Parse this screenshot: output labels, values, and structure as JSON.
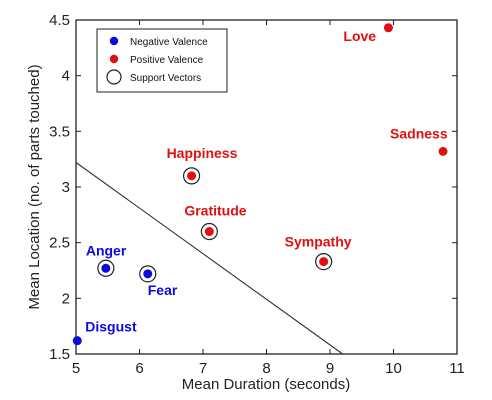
{
  "chart_data": {
    "type": "scatter",
    "xlabel": "Mean Duration (seconds)",
    "ylabel": "Mean Location (no. of parts touched)",
    "xlim": [
      5,
      11
    ],
    "ylim": [
      1.5,
      4.5
    ],
    "x_ticks": [
      "5",
      "6",
      "7",
      "8",
      "9",
      "10",
      "11"
    ],
    "y_ticks": [
      "1.5",
      "2",
      "2.5",
      "3",
      "3.5",
      "4",
      "4.5"
    ],
    "legend": {
      "placement": "top-left",
      "entries": [
        {
          "label": "Negative Valence",
          "marker": "blue-dot"
        },
        {
          "label": "Positive Valence",
          "marker": "red-dot"
        },
        {
          "label": "Support Vectors",
          "marker": "open-circle"
        }
      ]
    },
    "colors": {
      "negative": "#0a0ae0",
      "positive": "#e01010",
      "boundary": "#333333"
    },
    "decision_boundary": {
      "x": [
        5,
        9.2
      ],
      "y": [
        3.22,
        1.5
      ]
    },
    "series": [
      {
        "name": "Negative Valence",
        "points": [
          {
            "label": "Anger",
            "x": 5.47,
            "y": 2.27,
            "support_vector": true
          },
          {
            "label": "Fear",
            "x": 6.13,
            "y": 2.22,
            "support_vector": true
          },
          {
            "label": "Disgust",
            "x": 5.02,
            "y": 1.62,
            "support_vector": false
          }
        ]
      },
      {
        "name": "Positive Valence",
        "points": [
          {
            "label": "Happiness",
            "x": 6.82,
            "y": 3.1,
            "support_vector": true
          },
          {
            "label": "Gratitude",
            "x": 7.1,
            "y": 2.6,
            "support_vector": true
          },
          {
            "label": "Sympathy",
            "x": 8.9,
            "y": 2.33,
            "support_vector": true
          },
          {
            "label": "Love",
            "x": 9.92,
            "y": 4.43,
            "support_vector": false
          },
          {
            "label": "Sadness",
            "x": 10.78,
            "y": 3.32,
            "support_vector": false
          }
        ]
      }
    ]
  }
}
